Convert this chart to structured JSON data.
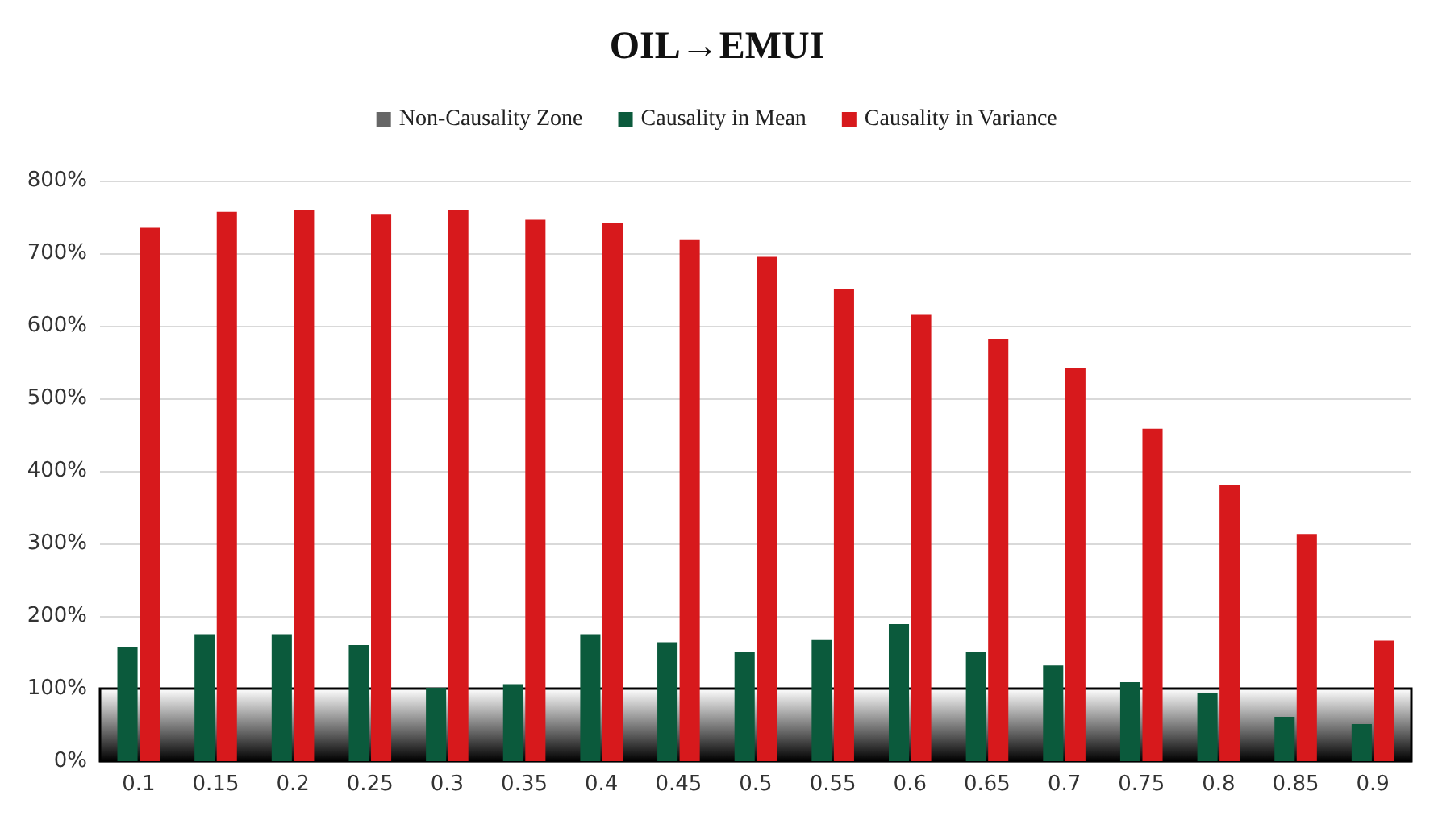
{
  "chart_data": {
    "type": "bar",
    "title": "OIL→EMUI",
    "categories": [
      "0.1",
      "0.15",
      "0.2",
      "0.25",
      "0.3",
      "0.35",
      "0.4",
      "0.45",
      "0.5",
      "0.55",
      "0.6",
      "0.65",
      "0.7",
      "0.75",
      "0.8",
      "0.85",
      "0.9"
    ],
    "series": [
      {
        "name": "Causality in Mean",
        "color": "#0b5a3c",
        "values": [
          157,
          175,
          175,
          160,
          101,
          106,
          175,
          164,
          150,
          167,
          189,
          150,
          132,
          109,
          94,
          61,
          51
        ]
      },
      {
        "name": "Causality in Variance",
        "color": "#d7191c",
        "values": [
          735,
          757,
          760,
          753,
          760,
          746,
          742,
          718,
          695,
          650,
          615,
          582,
          541,
          458,
          381,
          313,
          166
        ]
      }
    ],
    "bands": [
      {
        "axis": "y",
        "from": 0,
        "to": 100,
        "label": "Non-Causality Zone",
        "color": "#000000"
      }
    ],
    "ylim": [
      0,
      800
    ],
    "yticks": [
      {
        "value": 0,
        "label": "0%"
      },
      {
        "value": 100,
        "label": "100%"
      },
      {
        "value": 200,
        "label": "200%"
      },
      {
        "value": 300,
        "label": "300%"
      },
      {
        "value": 400,
        "label": "400%"
      },
      {
        "value": 500,
        "label": "500%"
      },
      {
        "value": 600,
        "label": "600%"
      },
      {
        "value": 700,
        "label": "700%"
      },
      {
        "value": 800,
        "label": "800%"
      }
    ],
    "grid": "y",
    "legend": "top"
  }
}
